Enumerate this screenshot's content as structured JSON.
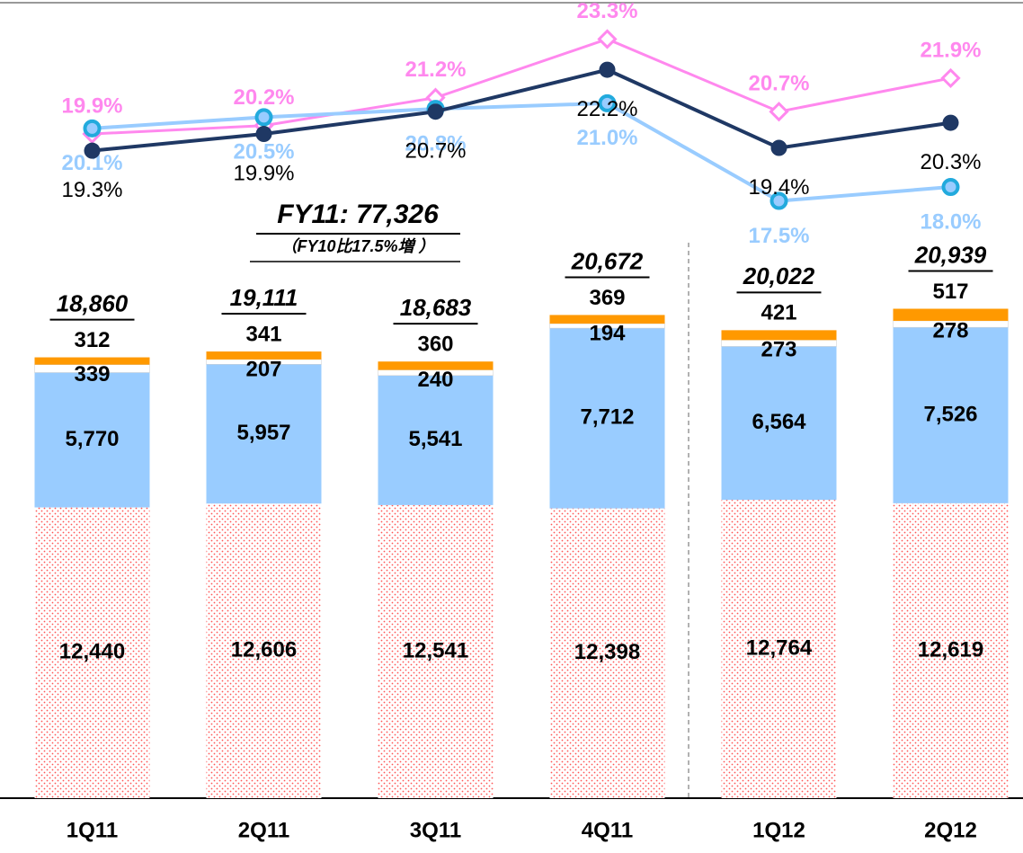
{
  "chart_data": {
    "type": "bar",
    "stacked": true,
    "annotations": [
      "FY11: 77,326",
      "（FY10比17.5%増 ）"
    ],
    "categories": [
      "1Q11",
      "2Q11",
      "3Q11",
      "4Q11",
      "1Q12",
      "2Q12"
    ],
    "ylim": [
      0,
      34150
    ],
    "y2lim": [
      -3.9,
      24.7
    ],
    "totals": [
      18860,
      19111,
      18683,
      20672,
      20022,
      20939
    ],
    "total_labels": [
      "18,860",
      "19,111",
      "18,683",
      "20,672",
      "20,022",
      "20,939"
    ],
    "series": [
      {
        "color": "#ff6666",
        "values": [
          12440,
          12606,
          12541,
          12398,
          12764,
          12619
        ],
        "value_labels": [
          "12,440",
          "12,606",
          "12,541",
          "12,398",
          "12,764",
          "12,619"
        ]
      },
      {
        "color": "#99ccff",
        "values": [
          5770,
          5957,
          5541,
          7712,
          6564,
          7526
        ],
        "value_labels": [
          "5,770",
          "5,957",
          "5,541",
          "7,712",
          "6,564",
          "7,526"
        ]
      },
      {
        "color": "#ffffff",
        "values": [
          339,
          207,
          240,
          194,
          273,
          278
        ],
        "value_labels": [
          "339",
          "207",
          "240",
          "194",
          "273",
          "278"
        ]
      },
      {
        "color": "#ff9900",
        "values": [
          312,
          341,
          360,
          369,
          421,
          517
        ],
        "value_labels": [
          "312",
          "341",
          "360",
          "369",
          "421",
          "517"
        ]
      }
    ],
    "lines": [
      {
        "type": "line",
        "axis": "y2",
        "color": "#ff88ee",
        "marker": "diamond",
        "values": [
          19.9,
          20.2,
          21.2,
          23.3,
          20.7,
          21.9
        ],
        "value_labels": [
          "19.9%",
          "20.2%",
          "21.2%",
          "23.3%",
          "20.7%",
          "21.9%"
        ]
      },
      {
        "type": "line",
        "axis": "y2",
        "color": "#99ccff",
        "marker": "circle",
        "values": [
          20.1,
          20.5,
          20.8,
          21.0,
          17.5,
          18.0
        ],
        "value_labels": [
          "20.1%",
          "20.5%",
          "20.8%",
          "21.0%",
          "17.5%",
          "18.0%"
        ]
      },
      {
        "type": "line",
        "axis": "y2",
        "color": "#1f3864",
        "marker": "dot",
        "values": [
          19.3,
          19.9,
          20.7,
          22.2,
          19.4,
          20.3
        ],
        "value_labels": [
          "19.3%",
          "19.9%",
          "20.7%",
          "22.2%",
          "19.4%",
          "20.3%"
        ]
      }
    ]
  }
}
